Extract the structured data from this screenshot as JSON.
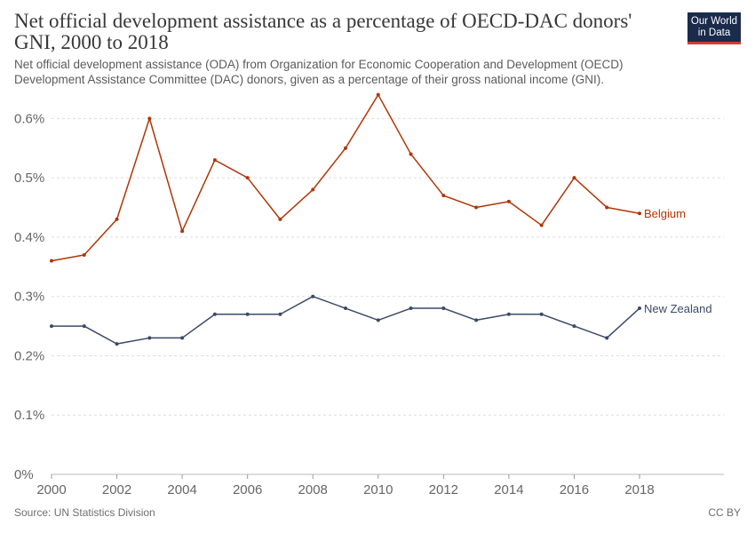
{
  "header": {
    "title": "Net official development assistance as a percentage of OECD-DAC donors' GNI, 2000 to 2018",
    "subtitle": "Net official development assistance (ODA) from Organization for Economic Cooperation and Development (OECD) Development Assistance Committee (DAC) donors, given as a percentage of their gross national income (GNI).",
    "logo_line1": "Our World",
    "logo_line2": "in Data"
  },
  "footer": {
    "source": "Source: UN Statistics Division",
    "license": "CC BY"
  },
  "chart_data": {
    "type": "line",
    "title": "Net official development assistance as a percentage of OECD-DAC donors' GNI, 2000 to 2018",
    "xlim": [
      2000,
      2018
    ],
    "ylim": [
      0,
      0.65
    ],
    "x_ticks": [
      2000,
      2002,
      2004,
      2006,
      2008,
      2010,
      2012,
      2014,
      2016,
      2018
    ],
    "y_ticks": [
      0,
      0.1,
      0.2,
      0.3,
      0.4,
      0.5,
      0.6
    ],
    "y_tick_labels": [
      "0%",
      "0.1%",
      "0.2%",
      "0.3%",
      "0.4%",
      "0.5%",
      "0.6%"
    ],
    "grid": "horizontal-dashed",
    "legend": "inline-right",
    "x": [
      2000,
      2001,
      2002,
      2003,
      2004,
      2005,
      2006,
      2007,
      2008,
      2009,
      2010,
      2011,
      2012,
      2013,
      2014,
      2015,
      2016,
      2017,
      2018
    ],
    "series": [
      {
        "name": "Belgium",
        "color": "#b13507",
        "values": [
          0.36,
          0.37,
          0.43,
          0.6,
          0.41,
          0.53,
          0.5,
          0.43,
          0.48,
          0.55,
          0.64,
          0.54,
          0.47,
          0.45,
          0.46,
          0.42,
          0.5,
          0.45,
          0.44
        ]
      },
      {
        "name": "New Zealand",
        "color": "#3b4a66",
        "values": [
          0.25,
          0.25,
          0.22,
          0.23,
          0.23,
          0.27,
          0.27,
          0.27,
          0.3,
          0.28,
          0.26,
          0.28,
          0.28,
          0.26,
          0.27,
          0.27,
          0.25,
          0.23,
          0.28
        ]
      }
    ]
  }
}
